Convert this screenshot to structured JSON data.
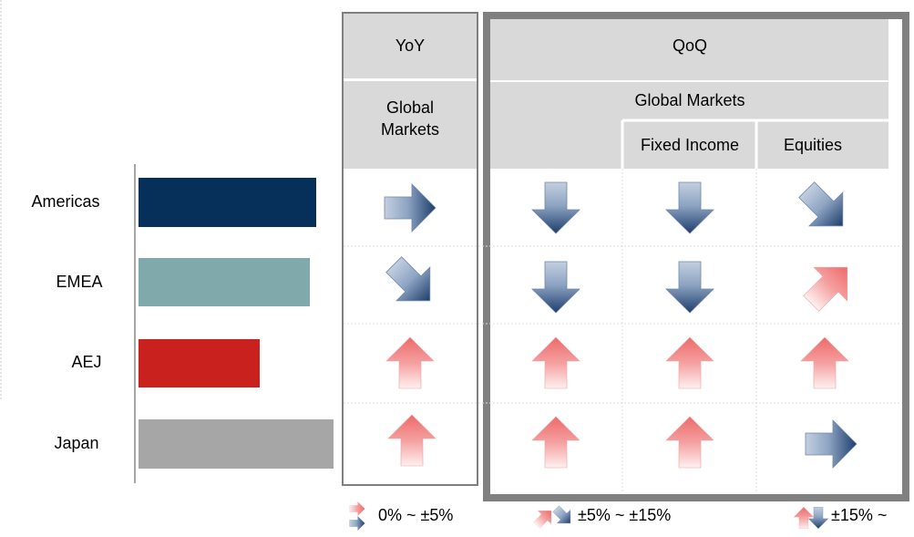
{
  "header": {
    "yoy": "YoY",
    "qoq": "QoQ"
  },
  "subheaders": {
    "yoy_global": "Global Markets",
    "qoq_global": "Global Markets",
    "fixed_income": "Fixed Income",
    "equities": "Equities"
  },
  "rows": [
    "Americas",
    "EMEA",
    "AEJ",
    "Japan"
  ],
  "legend": [
    "0% ~ ±5%",
    "±5% ~ ±15%",
    "±15% ~"
  ]
}
